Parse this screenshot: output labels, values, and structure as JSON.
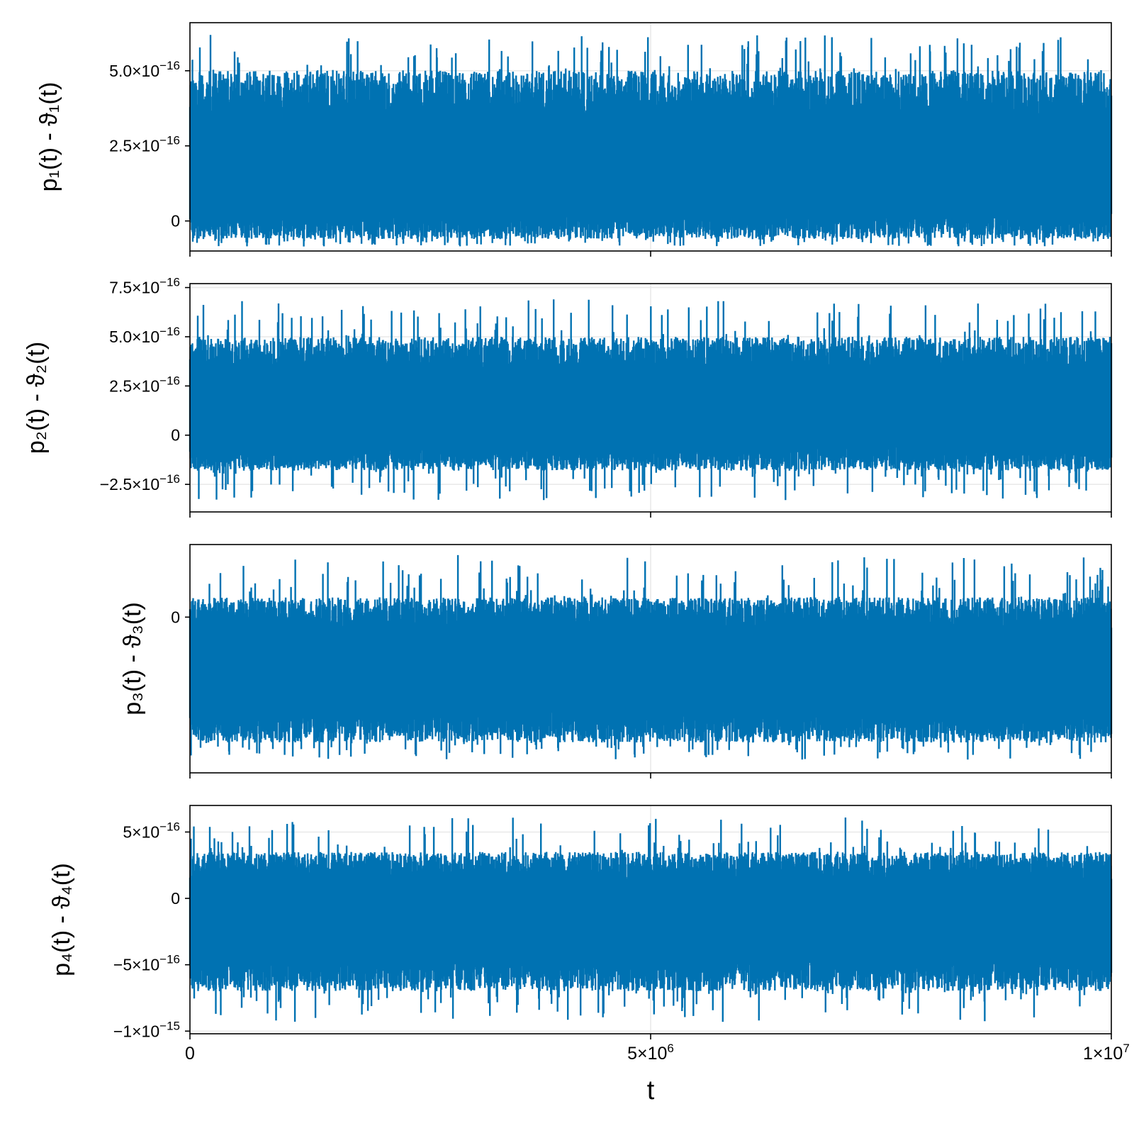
{
  "chart_data": [
    {
      "type": "line",
      "ylabel": "p₁(t) - ϑ₁(t)",
      "xlabel": "",
      "xlim": [
        0,
        10000000
      ],
      "ylim": [
        -1e-16,
        6.6e-16
      ],
      "yticks": [
        {
          "v": 0,
          "b": "0",
          "e": ""
        },
        {
          "v": 2.5e-16,
          "b": "2.5×10",
          "e": "−16"
        },
        {
          "v": 5e-16,
          "b": "5.0×10",
          "e": "−16"
        }
      ],
      "noise": {
        "center": 1.3e-16,
        "core_lo": -6e-17,
        "core_hi": 5e-16,
        "peak_lo": -8.5e-17,
        "peak_hi": 6.2e-16,
        "seed": 11
      },
      "series": [
        {
          "color": "#0072b2"
        }
      ]
    },
    {
      "type": "line",
      "ylabel": "p₂(t) - ϑ₂(t)",
      "xlabel": "",
      "xlim": [
        0,
        10000000
      ],
      "ylim": [
        -3.9e-16,
        7.7e-16
      ],
      "yticks": [
        {
          "v": -2.5e-16,
          "b": "−2.5×10",
          "e": "−16"
        },
        {
          "v": 0,
          "b": "0",
          "e": ""
        },
        {
          "v": 2.5e-16,
          "b": "2.5×10",
          "e": "−16"
        },
        {
          "v": 5e-16,
          "b": "5.0×10",
          "e": "−16"
        },
        {
          "v": 7.5e-16,
          "b": "7.5×10",
          "e": "−16"
        }
      ],
      "noise": {
        "center": 1e-16,
        "core_lo": -1.8e-16,
        "core_hi": 5e-16,
        "peak_lo": -3.3e-16,
        "peak_hi": 6.9e-16,
        "seed": 23
      },
      "series": [
        {
          "color": "#0072b2"
        }
      ]
    },
    {
      "type": "line",
      "ylabel": "p₃(t) - ϑ₃(t)",
      "xlabel": "",
      "xlim": [
        0,
        10000000
      ],
      "ylim": [
        -1.18,
        0.55
      ],
      "yticks": [
        {
          "v": 0,
          "b": "0",
          "e": ""
        }
      ],
      "noise": {
        "center": -0.4,
        "core_lo": -0.95,
        "core_hi": 0.15,
        "peak_lo": -1.08,
        "peak_hi": 0.47,
        "seed": 37
      },
      "series": [
        {
          "color": "#0072b2"
        }
      ]
    },
    {
      "type": "line",
      "ylabel": "p₄(t) - ϑ₄(t)",
      "xlabel": "t",
      "xlim": [
        0,
        10000000
      ],
      "ylim": [
        -1.02e-15,
        7e-16
      ],
      "yticks": [
        {
          "v": -1e-15,
          "b": "−1×10",
          "e": "−15"
        },
        {
          "v": -5e-16,
          "b": "−5×10",
          "e": "−16"
        },
        {
          "v": 0,
          "b": "0",
          "e": ""
        },
        {
          "v": 5e-16,
          "b": "5×10",
          "e": "−16"
        }
      ],
      "xticks": [
        {
          "v": 0,
          "b": "0",
          "e": ""
        },
        {
          "v": 5000000,
          "b": "5×10",
          "e": "6"
        },
        {
          "v": 10000000,
          "b": "1×10",
          "e": "7"
        }
      ],
      "noise": {
        "center": -1.2e-16,
        "core_lo": -7e-16,
        "core_hi": 3.5e-16,
        "peak_lo": -9.3e-16,
        "peak_hi": 6.1e-16,
        "seed": 53
      },
      "series": [
        {
          "color": "#0072b2"
        }
      ]
    }
  ]
}
